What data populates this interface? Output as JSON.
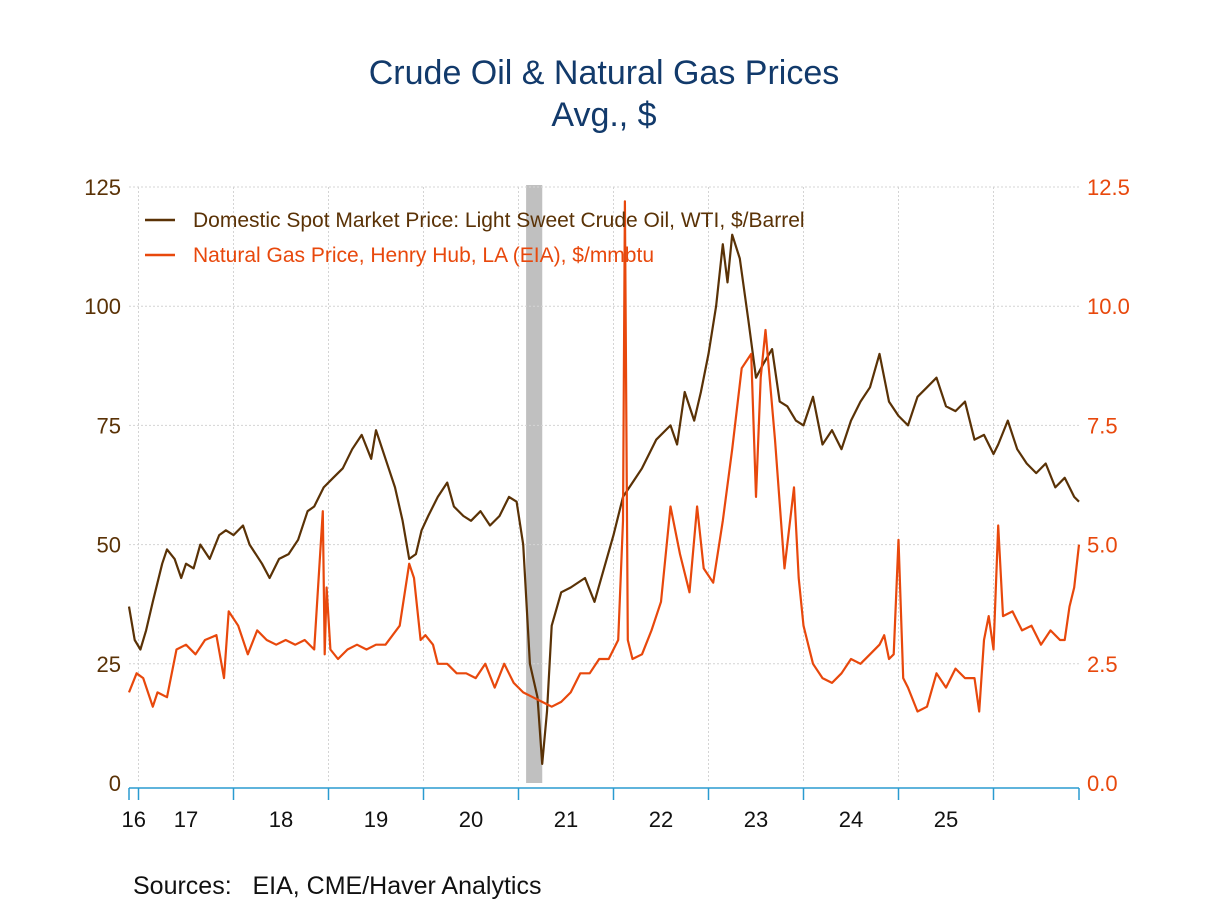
{
  "chart_data": {
    "type": "line",
    "title": "Crude Oil & Natural Gas Prices",
    "subtitle": "Avg., $",
    "source": "Sources:   EIA, CME/Haver Analytics",
    "x_tick_labels": [
      "16",
      "17",
      "18",
      "19",
      "20",
      "21",
      "22",
      "23",
      "24",
      "25"
    ],
    "x_range": [
      2015.9,
      2025.9
    ],
    "y_left": {
      "ticks": [
        0,
        25,
        50,
        75,
        100,
        125
      ],
      "labels": [
        "0",
        "25",
        "50",
        "75",
        "100",
        "125"
      ],
      "range": [
        0,
        125
      ],
      "color": "#5a3206"
    },
    "y_right": {
      "ticks": [
        0,
        2.5,
        5,
        7.5,
        10,
        12.5
      ],
      "labels": [
        "0.0",
        "2.5",
        "5.0",
        "7.5",
        "10.0",
        "12.5"
      ],
      "range": [
        0,
        12.5
      ],
      "color": "#e8480c"
    },
    "grid": true,
    "legend_position": "top-left",
    "recession_shading": [
      {
        "start": 2020.08,
        "end": 2020.25,
        "color": "#c0c0c0"
      }
    ],
    "series": [
      {
        "name": "Domestic Spot Market Price: Light Sweet Crude Oil, WTI, $/Barrel",
        "axis": "left",
        "color": "#5a3206",
        "x": [
          2015.9,
          2015.96,
          2016.02,
          2016.08,
          2016.15,
          2016.2,
          2016.25,
          2016.3,
          2016.38,
          2016.45,
          2016.5,
          2016.58,
          2016.65,
          2016.75,
          2016.85,
          2016.92,
          2017.0,
          2017.1,
          2017.17,
          2017.3,
          2017.38,
          2017.48,
          2017.58,
          2017.68,
          2017.78,
          2017.85,
          2017.95,
          2018.05,
          2018.15,
          2018.25,
          2018.35,
          2018.45,
          2018.5,
          2018.6,
          2018.7,
          2018.78,
          2018.85,
          2018.92,
          2018.98,
          2019.05,
          2019.15,
          2019.25,
          2019.32,
          2019.42,
          2019.5,
          2019.6,
          2019.7,
          2019.8,
          2019.9,
          2019.98,
          2020.05,
          2020.12,
          2020.2,
          2020.25,
          2020.3,
          2020.35,
          2020.45,
          2020.55,
          2020.7,
          2020.8,
          2020.9,
          2021.0,
          2021.1,
          2021.2,
          2021.3,
          2021.45,
          2021.6,
          2021.67,
          2021.75,
          2021.85,
          2021.92,
          2022.0,
          2022.08,
          2022.15,
          2022.2,
          2022.25,
          2022.33,
          2022.42,
          2022.5,
          2022.58,
          2022.67,
          2022.75,
          2022.83,
          2022.92,
          2023.0,
          2023.1,
          2023.2,
          2023.3,
          2023.4,
          2023.5,
          2023.6,
          2023.7,
          2023.8,
          2023.9,
          2024.0,
          2024.1,
          2024.2,
          2024.3,
          2024.4,
          2024.5,
          2024.6,
          2024.7,
          2024.8,
          2024.9,
          2025.0,
          2025.05,
          2025.15,
          2025.25,
          2025.35,
          2025.45,
          2025.55,
          2025.65,
          2025.75,
          2025.85,
          2025.9
        ],
        "values": [
          37,
          30,
          28,
          32,
          38,
          42,
          46,
          49,
          47,
          43,
          46,
          45,
          50,
          47,
          52,
          53,
          52,
          54,
          50,
          46,
          43,
          47,
          48,
          51,
          57,
          58,
          62,
          64,
          66,
          70,
          73,
          68,
          74,
          68,
          62,
          55,
          47,
          48,
          53,
          56,
          60,
          63,
          58,
          56,
          55,
          57,
          54,
          56,
          60,
          59,
          50,
          25,
          18,
          4,
          15,
          33,
          40,
          41,
          43,
          38,
          45,
          52,
          60,
          63,
          66,
          72,
          75,
          71,
          82,
          76,
          82,
          90,
          100,
          113,
          105,
          115,
          110,
          97,
          85,
          88,
          91,
          80,
          79,
          76,
          75,
          81,
          71,
          74,
          70,
          76,
          80,
          83,
          90,
          80,
          77,
          75,
          81,
          83,
          85,
          79,
          78,
          80,
          72,
          73,
          69,
          71,
          76,
          70,
          67,
          65,
          67,
          62,
          64,
          60,
          59
        ]
      },
      {
        "name": "Natural Gas Price, Henry Hub, LA (EIA), $/mmbtu",
        "axis": "right",
        "color": "#e8480c",
        "x": [
          2015.9,
          2015.98,
          2016.05,
          2016.15,
          2016.2,
          2016.3,
          2016.4,
          2016.5,
          2016.6,
          2016.7,
          2016.82,
          2016.9,
          2016.95,
          2017.05,
          2017.15,
          2017.25,
          2017.35,
          2017.45,
          2017.55,
          2017.65,
          2017.75,
          2017.85,
          2017.94,
          2017.96,
          2017.98,
          2018.02,
          2018.1,
          2018.2,
          2018.3,
          2018.4,
          2018.5,
          2018.6,
          2018.75,
          2018.85,
          2018.9,
          2018.97,
          2019.02,
          2019.1,
          2019.15,
          2019.25,
          2019.35,
          2019.45,
          2019.55,
          2019.65,
          2019.75,
          2019.85,
          2019.95,
          2020.05,
          2020.15,
          2020.25,
          2020.35,
          2020.45,
          2020.55,
          2020.65,
          2020.75,
          2020.85,
          2020.95,
          2021.05,
          2021.1,
          2021.12,
          2021.15,
          2021.2,
          2021.3,
          2021.4,
          2021.5,
          2021.6,
          2021.7,
          2021.8,
          2021.88,
          2021.95,
          2022.05,
          2022.15,
          2022.25,
          2022.35,
          2022.45,
          2022.5,
          2022.55,
          2022.6,
          2022.7,
          2022.8,
          2022.9,
          2022.95,
          2023.0,
          2023.1,
          2023.2,
          2023.3,
          2023.4,
          2023.5,
          2023.6,
          2023.7,
          2023.8,
          2023.85,
          2023.9,
          2023.95,
          2024.0,
          2024.05,
          2024.1,
          2024.2,
          2024.3,
          2024.4,
          2024.5,
          2024.6,
          2024.7,
          2024.8,
          2024.85,
          2024.9,
          2024.95,
          2025.0,
          2025.05,
          2025.1,
          2025.2,
          2025.3,
          2025.4,
          2025.5,
          2025.6,
          2025.7,
          2025.75,
          2025.8,
          2025.85,
          2025.9
        ],
        "values": [
          1.9,
          2.3,
          2.2,
          1.6,
          1.9,
          1.8,
          2.8,
          2.9,
          2.7,
          3.0,
          3.1,
          2.2,
          3.6,
          3.3,
          2.7,
          3.2,
          3.0,
          2.9,
          3.0,
          2.9,
          3.0,
          2.8,
          5.7,
          2.7,
          4.1,
          2.8,
          2.6,
          2.8,
          2.9,
          2.8,
          2.9,
          2.9,
          3.3,
          4.6,
          4.3,
          3.0,
          3.1,
          2.9,
          2.5,
          2.5,
          2.3,
          2.3,
          2.2,
          2.5,
          2.0,
          2.5,
          2.1,
          1.9,
          1.8,
          1.7,
          1.6,
          1.7,
          1.9,
          2.3,
          2.3,
          2.6,
          2.6,
          3.0,
          5.5,
          12.2,
          3.0,
          2.6,
          2.7,
          3.2,
          3.8,
          5.8,
          4.8,
          4.0,
          5.8,
          4.5,
          4.2,
          5.5,
          7.0,
          8.7,
          9.0,
          6.0,
          8.5,
          9.5,
          7.2,
          4.5,
          6.2,
          4.3,
          3.3,
          2.5,
          2.2,
          2.1,
          2.3,
          2.6,
          2.5,
          2.7,
          2.9,
          3.1,
          2.6,
          2.7,
          5.1,
          2.2,
          2.0,
          1.5,
          1.6,
          2.3,
          2.0,
          2.4,
          2.2,
          2.2,
          1.5,
          3.0,
          3.5,
          2.8,
          5.4,
          3.5,
          3.6,
          3.2,
          3.3,
          2.9,
          3.2,
          3.0,
          3.0,
          3.7,
          4.1,
          5.0
        ]
      }
    ]
  }
}
